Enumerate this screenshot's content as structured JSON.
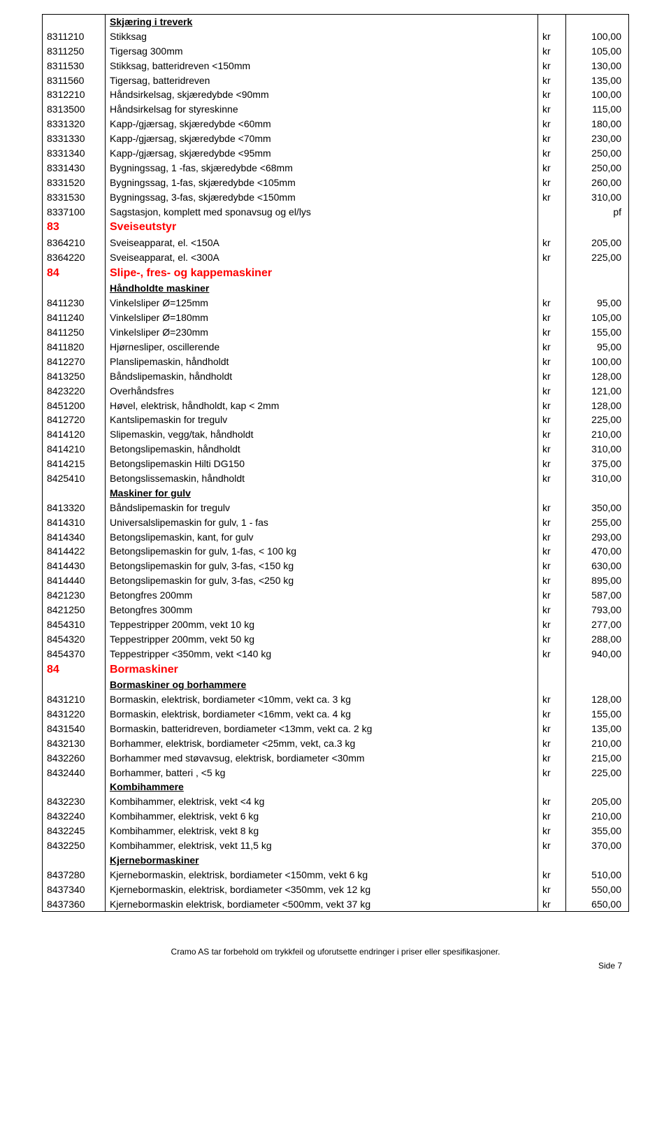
{
  "table_style": {
    "border_color": "#000000",
    "bg_color": "#ffffff",
    "text_color": "#000000",
    "section_color": "#ff0000",
    "font_size_row": 14,
    "font_size_section": 16,
    "font_family": "Arial"
  },
  "columns": [
    "code",
    "description",
    "currency",
    "value"
  ],
  "rows": [
    {
      "type": "sub",
      "sub": "Skjæring i treverk"
    },
    {
      "type": "item",
      "code": "8311210",
      "desc": "Stikksag",
      "kr": "kr",
      "val": "100,00"
    },
    {
      "type": "item",
      "code": "8311250",
      "desc": "Tigersag 300mm",
      "kr": "kr",
      "val": "105,00"
    },
    {
      "type": "item",
      "code": "8311530",
      "desc": "Stikksag, batteridreven <150mm",
      "kr": "kr",
      "val": "130,00"
    },
    {
      "type": "item",
      "code": "8311560",
      "desc": "Tigersag, batteridreven",
      "kr": "kr",
      "val": "135,00"
    },
    {
      "type": "item",
      "code": "8312210",
      "desc": "Håndsirkelsag, skjæredybde <90mm",
      "kr": "kr",
      "val": "100,00"
    },
    {
      "type": "item",
      "code": "8313500",
      "desc": "Håndsirkelsag for styreskinne",
      "kr": "kr",
      "val": "115,00"
    },
    {
      "type": "item",
      "code": "8331320",
      "desc": "Kapp-/gjærsag, skjæredybde <60mm",
      "kr": "kr",
      "val": "180,00"
    },
    {
      "type": "item",
      "code": "8331330",
      "desc": "Kapp-/gjærsag, skjæredybde <70mm",
      "kr": "kr",
      "val": "230,00"
    },
    {
      "type": "item",
      "code": "8331340",
      "desc": "Kapp-/gjærsag, skjæredybde <95mm",
      "kr": "kr",
      "val": "250,00"
    },
    {
      "type": "item",
      "code": "8331430",
      "desc": "Bygningssag, 1 -fas, skjæredybde <68mm",
      "kr": "kr",
      "val": "250,00"
    },
    {
      "type": "item",
      "code": "8331520",
      "desc": "Bygningssag, 1-fas, skjæredybde <105mm",
      "kr": "kr",
      "val": "260,00"
    },
    {
      "type": "item",
      "code": "8331530",
      "desc": "Bygningssag, 3-fas, skjæredybde <150mm",
      "kr": "kr",
      "val": "310,00"
    },
    {
      "type": "item",
      "code": "8337100",
      "desc": "Sagstasjon, komplett med sponavsug og el/lys",
      "kr": "",
      "val": "pf"
    },
    {
      "type": "section",
      "num": "83",
      "title": "Sveiseutstyr"
    },
    {
      "type": "item",
      "code": "8364210",
      "desc": "Sveiseapparat, el. <150A",
      "kr": "kr",
      "val": "205,00"
    },
    {
      "type": "item",
      "code": "8364220",
      "desc": "Sveiseapparat, el. <300A",
      "kr": "kr",
      "val": "225,00"
    },
    {
      "type": "section",
      "num": "84",
      "title": "Slipe-, fres- og kappemaskiner"
    },
    {
      "type": "sub",
      "sub": "Håndholdte maskiner"
    },
    {
      "type": "item",
      "code": "8411230",
      "desc": "Vinkelsliper Ø=125mm",
      "kr": "kr",
      "val": "95,00"
    },
    {
      "type": "item",
      "code": "8411240",
      "desc": "Vinkelsliper Ø=180mm",
      "kr": "kr",
      "val": "105,00"
    },
    {
      "type": "item",
      "code": "8411250",
      "desc": "Vinkelsliper Ø=230mm",
      "kr": "kr",
      "val": "155,00"
    },
    {
      "type": "item",
      "code": "8411820",
      "desc": "Hjørnesliper, oscillerende",
      "kr": "kr",
      "val": "95,00"
    },
    {
      "type": "item",
      "code": "8412270",
      "desc": "Planslipemaskin, håndholdt",
      "kr": "kr",
      "val": "100,00"
    },
    {
      "type": "item",
      "code": "8413250",
      "desc": "Båndslipemaskin, håndholdt",
      "kr": "kr",
      "val": "128,00"
    },
    {
      "type": "item",
      "code": "8423220",
      "desc": "Overhåndsfres",
      "kr": "kr",
      "val": "121,00"
    },
    {
      "type": "item",
      "code": "8451200",
      "desc": "Høvel, elektrisk, håndholdt, kap < 2mm",
      "kr": "kr",
      "val": "128,00"
    },
    {
      "type": "item",
      "code": "8412720",
      "desc": "Kantslipemaskin for tregulv",
      "kr": "kr",
      "val": "225,00"
    },
    {
      "type": "item",
      "code": "8414120",
      "desc": "Slipemaskin, vegg/tak, håndholdt",
      "kr": "kr",
      "val": "210,00"
    },
    {
      "type": "item",
      "code": "8414210",
      "desc": "Betongslipemaskin, håndholdt",
      "kr": "kr",
      "val": "310,00"
    },
    {
      "type": "item",
      "code": "8414215",
      "desc": "Betongslipemaskin Hilti DG150",
      "kr": "kr",
      "val": "375,00"
    },
    {
      "type": "item",
      "code": "8425410",
      "desc": "Betongslissemaskin, håndholdt",
      "kr": "kr",
      "val": "310,00"
    },
    {
      "type": "sub",
      "sub": "Maskiner for gulv"
    },
    {
      "type": "item",
      "code": "8413320",
      "desc": "Båndslipemaskin for tregulv",
      "kr": "kr",
      "val": "350,00"
    },
    {
      "type": "item",
      "code": "8414310",
      "desc": "Universalslipemaskin for gulv, 1 - fas",
      "kr": "kr",
      "val": "255,00"
    },
    {
      "type": "item",
      "code": "8414340",
      "desc": "Betongslipemaskin, kant, for gulv",
      "kr": "kr",
      "val": "293,00"
    },
    {
      "type": "item",
      "code": "8414422",
      "desc": "Betongslipemaskin for gulv, 1-fas, < 100 kg",
      "kr": "kr",
      "val": "470,00"
    },
    {
      "type": "item",
      "code": "8414430",
      "desc": "Betongslipemaskin for gulv, 3-fas, <150 kg",
      "kr": "kr",
      "val": "630,00"
    },
    {
      "type": "item",
      "code": "8414440",
      "desc": "Betongslipemaskin for gulv, 3-fas, <250 kg",
      "kr": "kr",
      "val": "895,00"
    },
    {
      "type": "item",
      "code": "8421230",
      "desc": "Betongfres 200mm",
      "kr": "kr",
      "val": "587,00"
    },
    {
      "type": "item",
      "code": "8421250",
      "desc": "Betongfres 300mm",
      "kr": "kr",
      "val": "793,00"
    },
    {
      "type": "item",
      "code": "8454310",
      "desc": "Teppestripper 200mm, vekt 10 kg",
      "kr": "kr",
      "val": "277,00"
    },
    {
      "type": "item",
      "code": "8454320",
      "desc": "Teppestripper 200mm, vekt 50 kg",
      "kr": "kr",
      "val": "288,00"
    },
    {
      "type": "item",
      "code": "8454370",
      "desc": "Teppestripper <350mm, vekt <140 kg",
      "kr": "kr",
      "val": "940,00"
    },
    {
      "type": "section",
      "num": "84",
      "title": "Bormaskiner"
    },
    {
      "type": "sub",
      "sub": "Bormaskiner og borhammere"
    },
    {
      "type": "item",
      "code": "8431210",
      "desc": "Bormaskin, elektrisk, bordiameter <10mm, vekt ca. 3 kg",
      "kr": "kr",
      "val": "128,00"
    },
    {
      "type": "item",
      "code": "8431220",
      "desc": "Bormaskin, elektrisk, bordiameter <16mm, vekt ca. 4 kg",
      "kr": "kr",
      "val": "155,00"
    },
    {
      "type": "item",
      "code": "8431540",
      "desc": "Bormaskin, batteridreven, bordiameter <13mm, vekt ca. 2 kg",
      "kr": "kr",
      "val": "135,00"
    },
    {
      "type": "item",
      "code": "8432130",
      "desc": "Borhammer, elektrisk, bordiameter <25mm, vekt, ca.3 kg",
      "kr": "kr",
      "val": "210,00"
    },
    {
      "type": "item",
      "code": "8432260",
      "desc": "Borhammer med støvavsug, elektrisk, bordiameter <30mm",
      "kr": "kr",
      "val": "215,00"
    },
    {
      "type": "item",
      "code": "8432440",
      "desc": "Borhammer, batteri , <5 kg",
      "kr": "kr",
      "val": "225,00"
    },
    {
      "type": "sub",
      "sub": "Kombihammere"
    },
    {
      "type": "item",
      "code": "8432230",
      "desc": "Kombihammer, elektrisk, vekt <4 kg",
      "kr": "kr",
      "val": "205,00"
    },
    {
      "type": "item",
      "code": "8432240",
      "desc": "Kombihammer, elektrisk,  vekt 6 kg",
      "kr": "kr",
      "val": "210,00"
    },
    {
      "type": "item",
      "code": "8432245",
      "desc": "Kombihammer, elektrisk,  vekt 8 kg",
      "kr": "kr",
      "val": "355,00"
    },
    {
      "type": "item",
      "code": "8432250",
      "desc": "Kombihammer, elektrisk,  vekt 11,5 kg",
      "kr": "kr",
      "val": "370,00"
    },
    {
      "type": "sub",
      "sub": "Kjernebormaskiner"
    },
    {
      "type": "item",
      "code": "8437280",
      "desc": "Kjernebormaskin, elektrisk, bordiameter <150mm, vekt 6 kg",
      "kr": "kr",
      "val": "510,00"
    },
    {
      "type": "item",
      "code": "8437340",
      "desc": "Kjernebormaskin, elektrisk, bordiameter <350mm, vek 12 kg",
      "kr": "kr",
      "val": "550,00"
    },
    {
      "type": "item",
      "code": "8437360",
      "desc": "Kjernebormaskin elektrisk, bordiameter <500mm, vekt 37 kg",
      "kr": "kr",
      "val": "650,00"
    }
  ],
  "footer": "Cramo AS tar forbehold om trykkfeil og uforutsette endringer i priser eller spesifikasjoner.",
  "page_label": "Side 7"
}
